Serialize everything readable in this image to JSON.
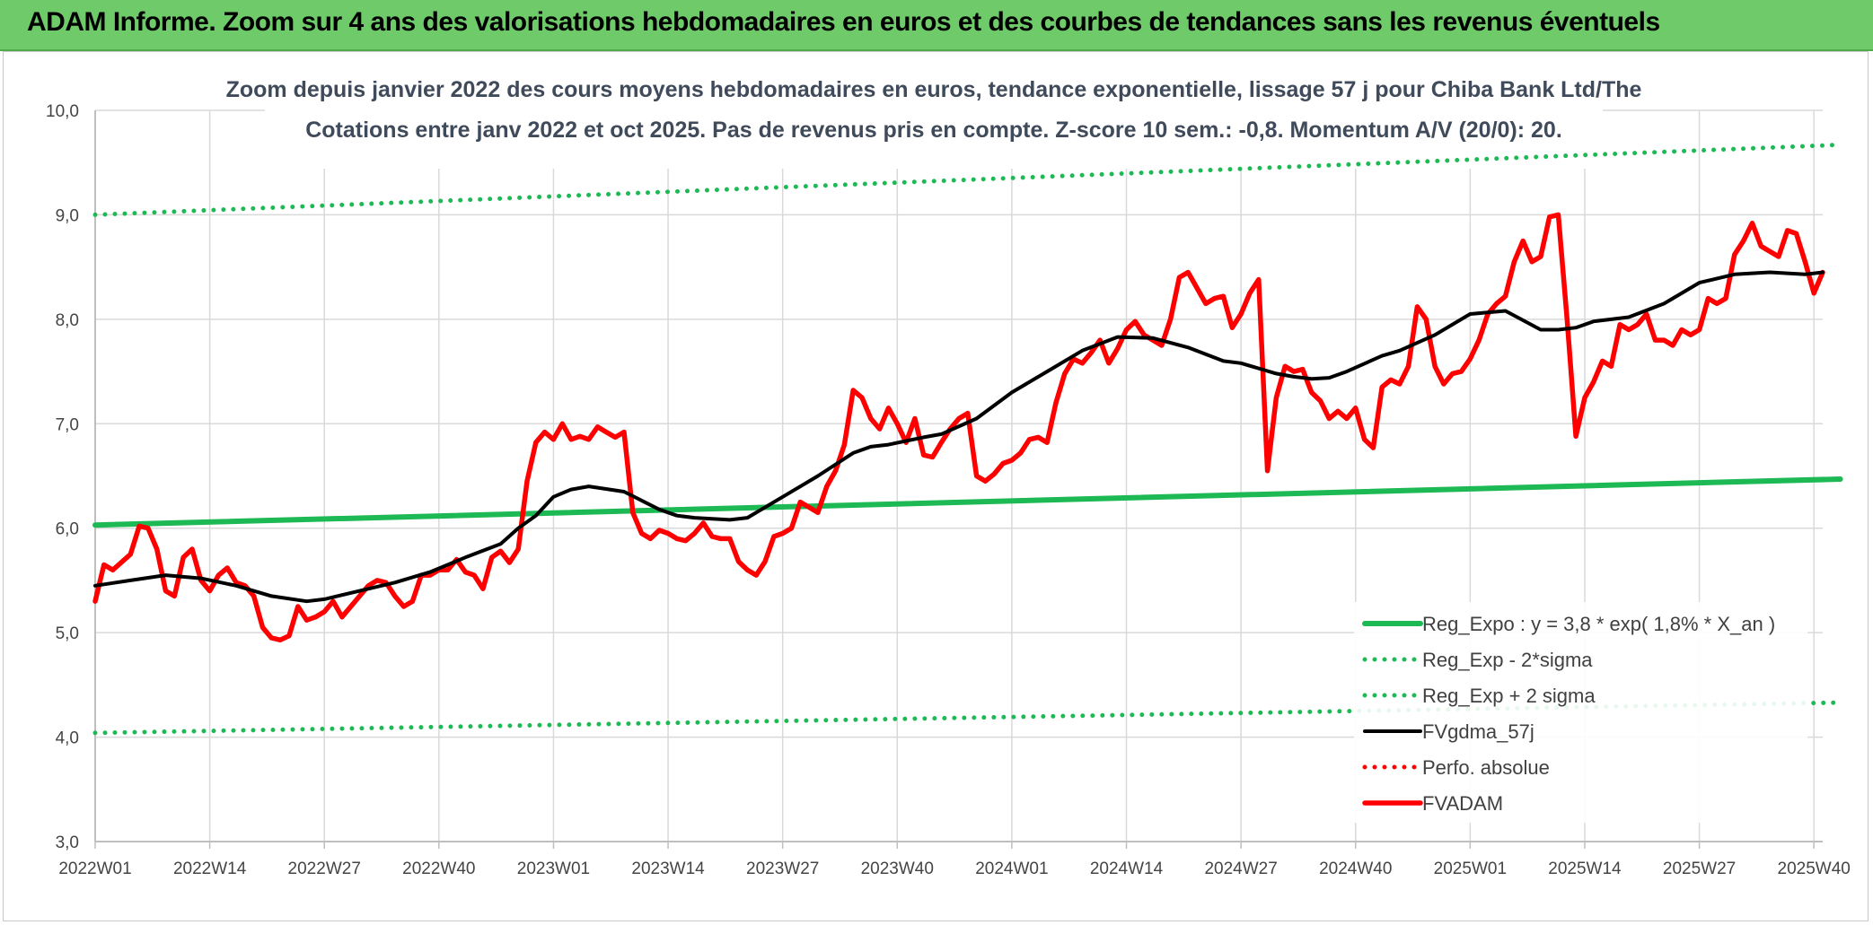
{
  "header": {
    "title": "ADAM Informe. Zoom sur 4 ans des valorisations hebdomadaires en euros et des courbes de tendances sans les revenus éventuels"
  },
  "chart_data": {
    "type": "line",
    "title_line1": "Zoom depuis janvier 2022 des cours moyens hebdomadaires en euros, tendance exponentielle, lissage 57 j pour Chiba Bank Ltd/The",
    "title_line2": "Cotations entre janv 2022 et oct 2025. Pas de revenus pris en compte. Z-score 10 sem.: -0,8. Momentum A/V (20/0): 20.",
    "ylim": [
      3.0,
      10.0
    ],
    "ytick_values": [
      3,
      4,
      5,
      6,
      7,
      8,
      9,
      10
    ],
    "ytick_labels": [
      "3,0",
      "4,0",
      "5,0",
      "6,0",
      "7,0",
      "8,0",
      "9,0",
      "10,0"
    ],
    "xlim": [
      0,
      196
    ],
    "xtick_positions": [
      0,
      13,
      26,
      39,
      52,
      65,
      78,
      91,
      104,
      117,
      130,
      143,
      156,
      169,
      182,
      195
    ],
    "xtick_labels": [
      "2022W01",
      "2022W14",
      "2022W27",
      "2022W40",
      "2023W01",
      "2023W14",
      "2023W27",
      "2023W40",
      "2024W01",
      "2024W14",
      "2024W27",
      "2024W40",
      "2025W01",
      "2025W14",
      "2025W27",
      "2025W40"
    ],
    "grid": "vertical-and-horizontal",
    "legend_position": "bottom-right",
    "colors": {
      "trend": "#1db954",
      "bands": "#1db954",
      "smooth": "#000000",
      "price": "#ff0000",
      "perfo": "#ff0000",
      "grid": "#d9d9d9",
      "axis": "#bfbfbf"
    },
    "series": [
      {
        "name": "Reg_Expo : y = 3,8 * exp( 1,8% *  X_an )",
        "style": "solid",
        "color": "#1db954",
        "x": [
          0,
          198
        ],
        "values": [
          6.03,
          6.47
        ]
      },
      {
        "name": "Reg_Exp - 2*sigma",
        "style": "dotted",
        "color": "#1db954",
        "x": [
          0,
          198
        ],
        "values": [
          4.04,
          4.33
        ]
      },
      {
        "name": "Reg_Exp + 2 sigma",
        "style": "dotted",
        "color": "#1db954",
        "x": [
          0,
          198
        ],
        "values": [
          9.0,
          9.67
        ]
      },
      {
        "name": "FVgdma_57j",
        "style": "solid",
        "color": "#000000",
        "x": [
          0,
          4,
          8,
          12,
          16,
          20,
          24,
          26,
          30,
          34,
          38,
          42,
          46,
          48,
          50,
          52,
          54,
          56,
          60,
          64,
          66,
          68,
          72,
          74,
          78,
          82,
          86,
          88,
          90,
          94,
          96,
          100,
          104,
          108,
          112,
          116,
          120,
          124,
          128,
          130,
          134,
          136,
          138,
          140,
          142,
          146,
          148,
          152,
          156,
          160,
          164,
          166,
          168,
          170,
          172,
          174,
          178,
          182,
          186,
          190,
          194,
          196
        ],
        "values": [
          5.45,
          5.5,
          5.55,
          5.52,
          5.45,
          5.35,
          5.3,
          5.32,
          5.4,
          5.48,
          5.58,
          5.72,
          5.85,
          6.0,
          6.12,
          6.3,
          6.37,
          6.4,
          6.35,
          6.18,
          6.12,
          6.1,
          6.08,
          6.1,
          6.3,
          6.5,
          6.72,
          6.78,
          6.8,
          6.87,
          6.9,
          7.05,
          7.3,
          7.5,
          7.7,
          7.83,
          7.82,
          7.73,
          7.6,
          7.58,
          7.48,
          7.45,
          7.43,
          7.44,
          7.5,
          7.65,
          7.7,
          7.85,
          8.05,
          8.08,
          7.9,
          7.9,
          7.92,
          7.98,
          8.0,
          8.02,
          8.15,
          8.35,
          8.43,
          8.45,
          8.43,
          8.45
        ]
      },
      {
        "name": "Perfo. absolue",
        "style": "dotted",
        "color": "#ff0000",
        "x": [],
        "values": []
      },
      {
        "name": "FVADAM",
        "style": "solid",
        "color": "#ff0000",
        "x": [
          0,
          1,
          2,
          4,
          5,
          6,
          7,
          8,
          9,
          10,
          11,
          12,
          13,
          14,
          15,
          16,
          17,
          18,
          19,
          20,
          21,
          22,
          23,
          24,
          25,
          26,
          27,
          28,
          30,
          31,
          32,
          33,
          34,
          35,
          36,
          37,
          38,
          39,
          40,
          41,
          42,
          43,
          44,
          45,
          46,
          47,
          48,
          49,
          50,
          51,
          52,
          53,
          54,
          55,
          56,
          57,
          58,
          59,
          60,
          61,
          62,
          63,
          64,
          65,
          66,
          67,
          68,
          69,
          70,
          71,
          72,
          73,
          74,
          75,
          76,
          77,
          78,
          79,
          80,
          81,
          82,
          83,
          84,
          85,
          86,
          87,
          88,
          89,
          90,
          91,
          92,
          93,
          94,
          95,
          96,
          97,
          98,
          99,
          100,
          101,
          102,
          103,
          104,
          105,
          106,
          107,
          108,
          109,
          110,
          111,
          112,
          113,
          114,
          115,
          116,
          117,
          118,
          119,
          120,
          121,
          122,
          123,
          124,
          125,
          126,
          127,
          128,
          129,
          130,
          131,
          132,
          133,
          134,
          135,
          136,
          137,
          138,
          139,
          140,
          141,
          142,
          143,
          144,
          145,
          146,
          147,
          148,
          149,
          150,
          151,
          152,
          153,
          154,
          155,
          156,
          157,
          158,
          159,
          160,
          161,
          162,
          163,
          164,
          165,
          166,
          167,
          168,
          169,
          170,
          171,
          172,
          173,
          174,
          175,
          176,
          177,
          178,
          179,
          180,
          181,
          182,
          183,
          184,
          185,
          186,
          187,
          188,
          189,
          190,
          191,
          192,
          193,
          194,
          195,
          196
        ],
        "values": [
          5.3,
          5.65,
          5.6,
          5.75,
          6.02,
          6.0,
          5.8,
          5.4,
          5.35,
          5.72,
          5.8,
          5.5,
          5.4,
          5.55,
          5.62,
          5.48,
          5.45,
          5.35,
          5.05,
          4.95,
          4.93,
          4.97,
          5.25,
          5.12,
          5.15,
          5.2,
          5.3,
          5.15,
          5.35,
          5.45,
          5.5,
          5.48,
          5.35,
          5.25,
          5.3,
          5.55,
          5.55,
          5.6,
          5.6,
          5.7,
          5.58,
          5.55,
          5.42,
          5.72,
          5.78,
          5.67,
          5.8,
          6.45,
          6.82,
          6.92,
          6.85,
          7.0,
          6.85,
          6.88,
          6.85,
          6.97,
          6.92,
          6.87,
          6.92,
          6.15,
          5.95,
          5.9,
          5.98,
          5.95,
          5.9,
          5.88,
          5.95,
          6.05,
          5.92,
          5.9,
          5.9,
          5.68,
          5.6,
          5.55,
          5.68,
          5.92,
          5.95,
          6.0,
          6.25,
          6.2,
          6.15,
          6.4,
          6.55,
          6.8,
          7.32,
          7.25,
          7.05,
          6.95,
          7.15,
          7.0,
          6.82,
          7.05,
          6.7,
          6.68,
          6.82,
          6.95,
          7.05,
          7.1,
          6.5,
          6.45,
          6.52,
          6.62,
          6.65,
          6.72,
          6.85,
          6.87,
          6.82,
          7.2,
          7.48,
          7.62,
          7.58,
          7.68,
          7.8,
          7.58,
          7.72,
          7.9,
          7.98,
          7.85,
          7.8,
          7.75,
          8.0,
          8.4,
          8.45,
          8.3,
          8.15,
          8.2,
          8.22,
          7.92,
          8.05,
          8.25,
          8.38,
          6.55,
          7.25,
          7.55,
          7.5,
          7.52,
          7.3,
          7.22,
          7.05,
          7.12,
          7.05,
          7.15,
          6.85,
          6.77,
          7.35,
          7.42,
          7.38,
          7.55,
          8.12,
          8.0,
          7.55,
          7.38,
          7.48,
          7.5,
          7.62,
          7.8,
          8.05,
          8.15,
          8.22,
          8.55,
          8.75,
          8.55,
          8.6,
          8.98,
          9.0,
          8.0,
          6.88,
          7.25,
          7.4,
          7.6,
          7.55,
          7.95,
          7.9,
          7.95,
          8.05,
          7.8,
          7.8,
          7.75,
          7.9,
          7.85,
          7.9,
          8.2,
          8.15,
          8.2,
          8.62,
          8.75,
          8.92,
          8.7,
          8.65,
          8.6,
          8.85,
          8.82,
          8.55,
          8.25,
          8.45
        ]
      }
    ]
  }
}
